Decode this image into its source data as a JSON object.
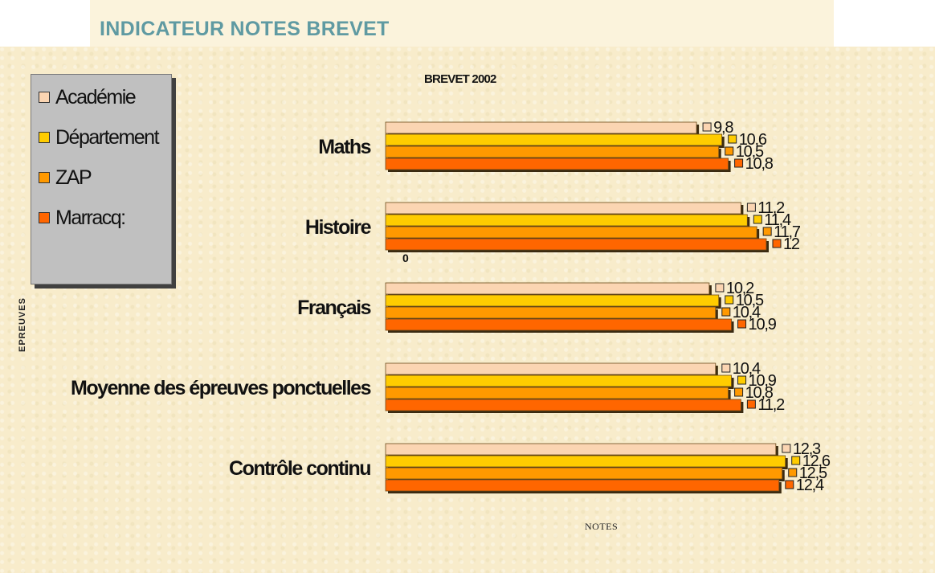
{
  "page": {
    "title": "INDICATEUR NOTES BREVET"
  },
  "chart_data": {
    "type": "bar",
    "orientation": "horizontal",
    "title": "BREVET 2002",
    "xlabel": "NOTES",
    "ylabel": "EPREUVES",
    "zero_tick": "0",
    "xlim": [
      0,
      14
    ],
    "legend_position": "top-left",
    "grid": false,
    "categories": [
      "Maths",
      "Histoire",
      "Français",
      "Moyenne des épreuves ponctuelles",
      "Contrôle continu"
    ],
    "series": [
      {
        "name": "Académie",
        "color": "#fbd5b2",
        "values": [
          9.8,
          11.2,
          10.2,
          10.4,
          12.3
        ],
        "labels": [
          "9,8",
          "11,2",
          "10,2",
          "10,4",
          "12,3"
        ]
      },
      {
        "name": "Département",
        "color": "#ffcc00",
        "values": [
          10.6,
          11.4,
          10.5,
          10.9,
          12.6
        ],
        "labels": [
          "10,6",
          "11,4",
          "10,5",
          "10,9",
          "12,6"
        ]
      },
      {
        "name": "ZAP",
        "color": "#ff9900",
        "values": [
          10.5,
          11.7,
          10.4,
          10.8,
          12.5
        ],
        "labels": [
          "10,5",
          "11,7",
          "10,4",
          "10,8",
          "12,5"
        ]
      },
      {
        "name": "Marracq:",
        "color": "#ff6600",
        "values": [
          10.8,
          12,
          10.9,
          11.2,
          12.4
        ],
        "labels": [
          "10,8",
          "12",
          "10,9",
          "11,2",
          "12,4"
        ]
      }
    ]
  }
}
